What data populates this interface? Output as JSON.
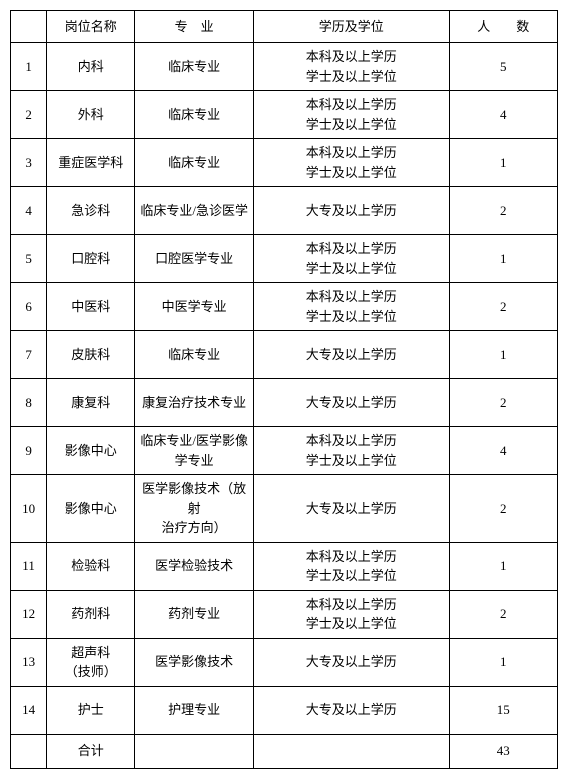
{
  "headers": {
    "index": "",
    "post": "岗位名称",
    "major": "专　业",
    "education": "学历及学位",
    "count": "人　　数"
  },
  "rows": [
    {
      "idx": "1",
      "post": "内科",
      "major": "临床专业",
      "edu": "本科及以上学历\n学士及以上学位",
      "count": "5"
    },
    {
      "idx": "2",
      "post": "外科",
      "major": "临床专业",
      "edu": "本科及以上学历\n学士及以上学位",
      "count": "4"
    },
    {
      "idx": "3",
      "post": "重症医学科",
      "major": "临床专业",
      "edu": "本科及以上学历\n学士及以上学位",
      "count": "1"
    },
    {
      "idx": "4",
      "post": "急诊科",
      "major": "临床专业/急诊医学",
      "edu": "大专及以上学历",
      "count": "2"
    },
    {
      "idx": "5",
      "post": "口腔科",
      "major": "口腔医学专业",
      "edu": "本科及以上学历\n学士及以上学位",
      "count": "1"
    },
    {
      "idx": "6",
      "post": "中医科",
      "major": "中医学专业",
      "edu": "本科及以上学历\n学士及以上学位",
      "count": "2"
    },
    {
      "idx": "7",
      "post": "皮肤科",
      "major": "临床专业",
      "edu": "大专及以上学历",
      "count": "1"
    },
    {
      "idx": "8",
      "post": "康复科",
      "major": "康复治疗技术专业",
      "edu": "大专及以上学历",
      "count": "2"
    },
    {
      "idx": "9",
      "post": "影像中心",
      "major": "临床专业/医学影像\n学专业",
      "edu": "本科及以上学历\n学士及以上学位",
      "count": "4"
    },
    {
      "idx": "10",
      "post": "影像中心",
      "major": "医学影像技术（放射\n治疗方向）",
      "edu": "大专及以上学历",
      "count": "2"
    },
    {
      "idx": "11",
      "post": "检验科",
      "major": "医学检验技术",
      "edu": "本科及以上学历\n学士及以上学位",
      "count": "1"
    },
    {
      "idx": "12",
      "post": "药剂科",
      "major": "药剂专业",
      "edu": "本科及以上学历\n学士及以上学位",
      "count": "2"
    },
    {
      "idx": "13",
      "post": "超声科\n（技师）",
      "major": "医学影像技术",
      "edu": "大专及以上学历",
      "count": "1"
    },
    {
      "idx": "14",
      "post": "护士",
      "major": "护理专业",
      "edu": "大专及以上学历",
      "count": "15"
    }
  ],
  "total": {
    "label": "合计",
    "count": "43"
  }
}
